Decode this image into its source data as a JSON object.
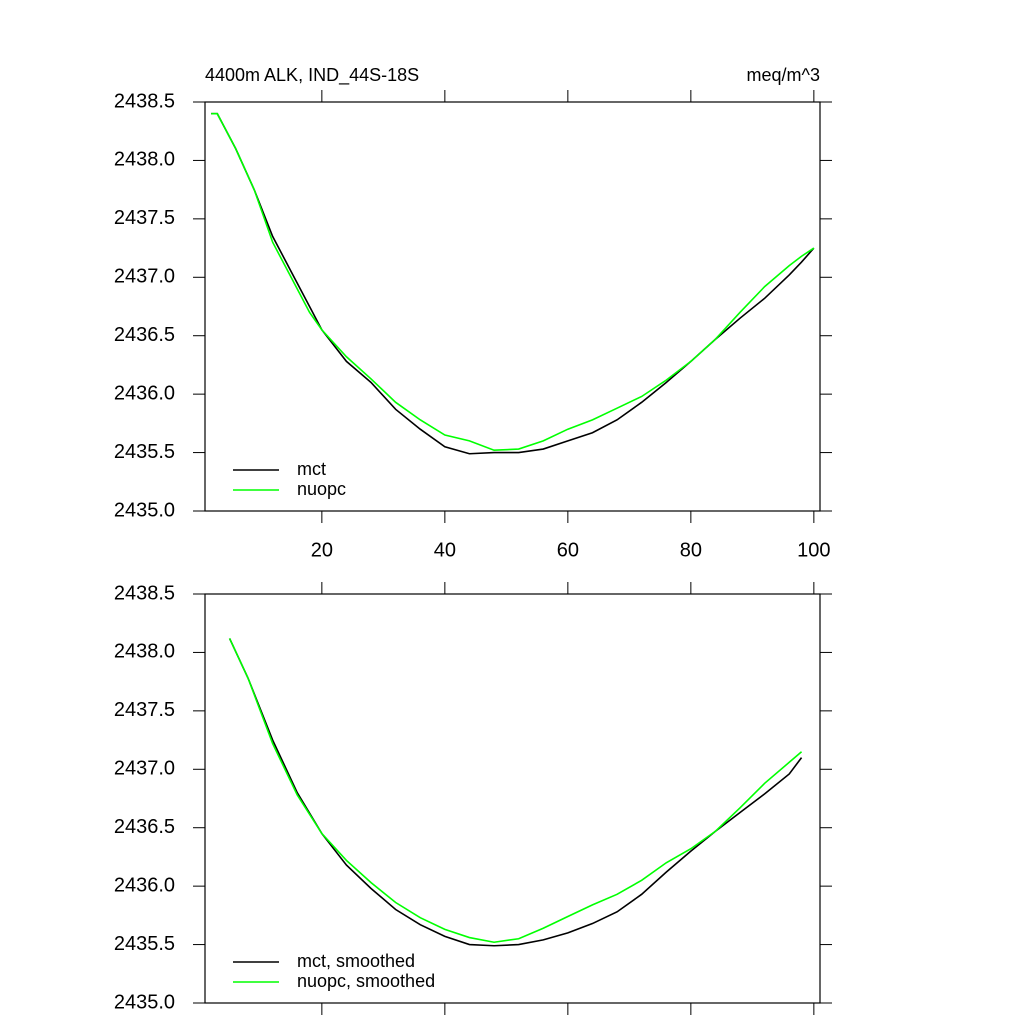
{
  "chart_data": [
    {
      "type": "line",
      "title": "4400m ALK, IND_44S-18S",
      "units": "meq/m^3",
      "x": [
        2,
        3,
        6,
        9,
        12,
        15,
        18,
        20,
        24,
        28,
        32,
        36,
        40,
        44,
        48,
        52,
        56,
        60,
        64,
        68,
        72,
        76,
        80,
        84,
        88,
        92,
        96,
        98,
        100
      ],
      "series": [
        {
          "name": "mct",
          "color": "#000000",
          "values": [
            2438.4,
            2438.4,
            2438.1,
            2437.75,
            2437.35,
            2437.05,
            2436.75,
            2436.55,
            2436.28,
            2436.1,
            2435.87,
            2435.7,
            2435.55,
            2435.49,
            2435.5,
            2435.5,
            2435.53,
            2435.6,
            2435.67,
            2435.78,
            2435.93,
            2436.1,
            2436.28,
            2436.47,
            2436.65,
            2436.82,
            2437.02,
            2437.13,
            2437.25
          ]
        },
        {
          "name": "nuopc",
          "color": "#00ff00",
          "values": [
            2438.4,
            2438.4,
            2438.1,
            2437.75,
            2437.3,
            2437.0,
            2436.7,
            2436.55,
            2436.32,
            2436.13,
            2435.93,
            2435.78,
            2435.65,
            2435.6,
            2435.52,
            2435.53,
            2435.6,
            2435.7,
            2435.78,
            2435.88,
            2435.98,
            2436.12,
            2436.28,
            2436.47,
            2436.7,
            2436.92,
            2437.1,
            2437.18,
            2437.25
          ]
        }
      ],
      "xlim": [
        1,
        101
      ],
      "xticks": [
        20,
        40,
        60,
        80,
        100
      ],
      "show_xtick_labels": true,
      "ylim": [
        2435,
        2438.5
      ],
      "yticks": [
        {
          "value": 2435,
          "label": "2435.0"
        },
        2435.5,
        {
          "value": 2436,
          "label": "2436.0"
        },
        2436.5,
        {
          "value": 2437,
          "label": "2437.0"
        },
        2437.5,
        {
          "value": 2438,
          "label": "2438.0"
        },
        2438.5
      ],
      "legend": "lower left"
    },
    {
      "type": "line",
      "x": [
        5,
        8,
        12,
        16,
        20,
        24,
        28,
        32,
        36,
        40,
        44,
        48,
        52,
        56,
        60,
        64,
        68,
        72,
        76,
        80,
        84,
        88,
        92,
        96,
        98
      ],
      "series": [
        {
          "name": "mct, smoothed",
          "color": "#000000",
          "values": [
            2438.12,
            2437.78,
            2437.25,
            2436.8,
            2436.45,
            2436.18,
            2435.98,
            2435.8,
            2435.67,
            2435.57,
            2435.5,
            2435.49,
            2435.5,
            2435.54,
            2435.6,
            2435.68,
            2435.78,
            2435.93,
            2436.12,
            2436.3,
            2436.47,
            2436.63,
            2436.79,
            2436.96,
            2437.1
          ]
        },
        {
          "name": "nuopc, smoothed",
          "color": "#00ff00",
          "values": [
            2438.12,
            2437.78,
            2437.22,
            2436.78,
            2436.45,
            2436.22,
            2436.03,
            2435.86,
            2435.73,
            2435.63,
            2435.56,
            2435.52,
            2435.55,
            2435.64,
            2435.74,
            2435.84,
            2435.93,
            2436.05,
            2436.2,
            2436.32,
            2436.47,
            2436.67,
            2436.88,
            2437.06,
            2437.15
          ]
        }
      ],
      "xlim": [
        1,
        101
      ],
      "xticks": [
        20,
        40,
        60,
        80,
        100
      ],
      "show_xtick_labels": false,
      "ylim": [
        2435,
        2438.5
      ],
      "yticks": [
        {
          "value": 2435,
          "label": "2435.0"
        },
        2435.5,
        {
          "value": 2436,
          "label": "2436.0"
        },
        2436.5,
        {
          "value": 2437,
          "label": "2437.0"
        },
        2437.5,
        {
          "value": 2438,
          "label": "2438.0"
        },
        2438.5
      ],
      "legend": "lower left"
    }
  ]
}
